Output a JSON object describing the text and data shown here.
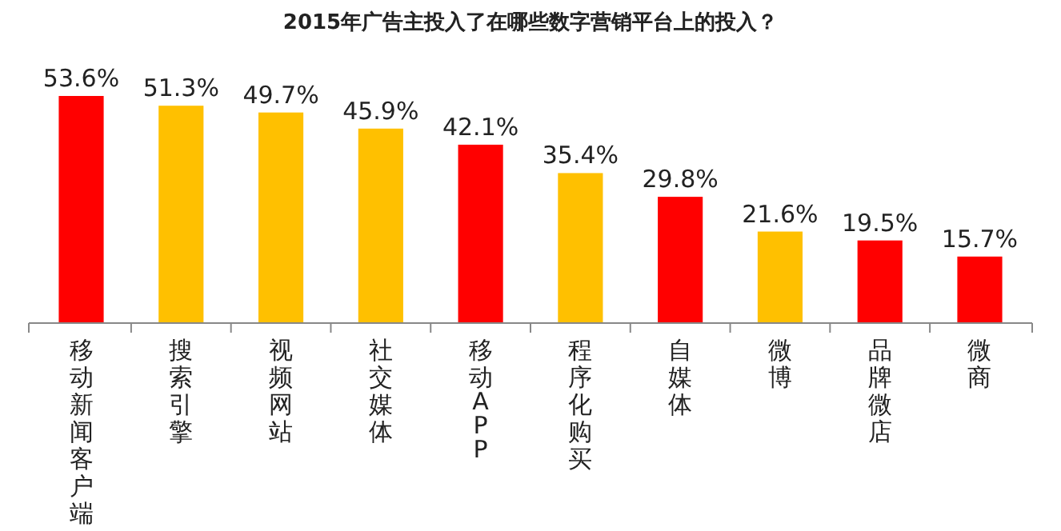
{
  "chart_data": {
    "type": "bar",
    "title": "2015年广告主投入了在哪些数字营销平台上的投入？",
    "categories": [
      "移动新闻客户端",
      "搜索引擎",
      "视频网站",
      "社交媒体",
      "移动APP",
      "程序化购买",
      "自媒体",
      "微博",
      "品牌微店",
      "微商"
    ],
    "values": [
      53.6,
      51.3,
      49.7,
      45.9,
      42.1,
      35.4,
      29.8,
      21.6,
      19.5,
      15.7
    ],
    "value_labels": [
      "53.6%",
      "51.3%",
      "49.7%",
      "45.9%",
      "42.1%",
      "35.4%",
      "29.8%",
      "21.6%",
      "19.5%",
      "15.7%"
    ],
    "colors": [
      "#ff0000",
      "#ffc000",
      "#ffc000",
      "#ffc000",
      "#ff0000",
      "#ffc000",
      "#ff0000",
      "#ffc000",
      "#ff0000",
      "#ff0000"
    ]
  }
}
